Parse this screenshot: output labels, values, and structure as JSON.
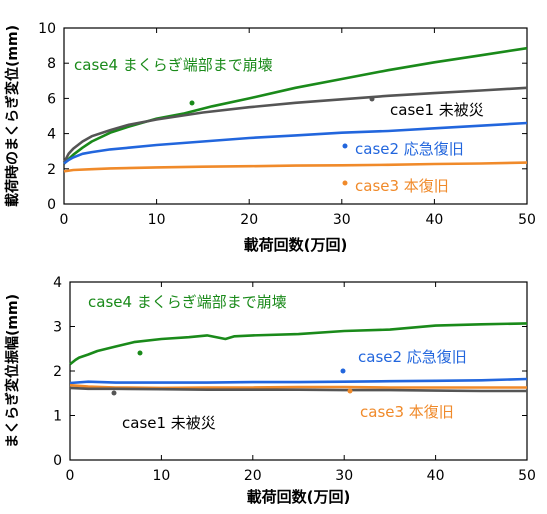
{
  "chart_data": [
    {
      "type": "line",
      "xlabel": "載荷回数(万回)",
      "ylabel": "載荷時のまくらぎ変位(mm)",
      "xlim": [
        0,
        50
      ],
      "ylim": [
        0,
        10
      ],
      "xticks": [
        "0",
        "10",
        "20",
        "30",
        "40",
        "50"
      ],
      "yticks": [
        "0",
        "2",
        "4",
        "6",
        "8",
        "10"
      ],
      "grid": false,
      "series": [
        {
          "name": "case4 まくらぎ端部まで崩壊",
          "color": "#1a8a1a",
          "x": [
            0,
            0.5,
            1,
            2,
            3,
            5,
            7,
            10,
            13,
            16,
            20,
            25,
            30,
            35,
            40,
            45,
            50
          ],
          "y": [
            2.3,
            2.55,
            2.8,
            3.2,
            3.55,
            4.05,
            4.4,
            4.85,
            5.15,
            5.55,
            6.0,
            6.6,
            7.1,
            7.6,
            8.05,
            8.45,
            8.85
          ]
        },
        {
          "name": "case1 未被災",
          "color": "#555555",
          "x": [
            0,
            0.5,
            1,
            2,
            3,
            5,
            7,
            10,
            15,
            20,
            25,
            30,
            35,
            40,
            45,
            50
          ],
          "y": [
            2.35,
            2.85,
            3.15,
            3.55,
            3.85,
            4.2,
            4.5,
            4.8,
            5.2,
            5.5,
            5.75,
            5.95,
            6.15,
            6.3,
            6.45,
            6.6
          ]
        },
        {
          "name": "case2 応急復旧",
          "color": "#2266dd",
          "x": [
            0,
            0.5,
            1,
            2,
            3,
            5,
            7,
            10,
            15,
            20,
            25,
            30,
            35,
            40,
            45,
            50
          ],
          "y": [
            2.3,
            2.5,
            2.65,
            2.85,
            2.95,
            3.1,
            3.2,
            3.35,
            3.55,
            3.75,
            3.9,
            4.05,
            4.15,
            4.3,
            4.45,
            4.6
          ]
        },
        {
          "name": "case3 本復旧",
          "color": "#f08a2a",
          "x": [
            0,
            1,
            3,
            5,
            10,
            15,
            20,
            25,
            30,
            35,
            40,
            45,
            50
          ],
          "y": [
            1.85,
            1.93,
            1.98,
            2.02,
            2.08,
            2.12,
            2.15,
            2.18,
            2.2,
            2.23,
            2.27,
            2.3,
            2.35
          ]
        }
      ],
      "annotations": [
        {
          "series": 0,
          "label": "case4 まくらぎ端部まで崩壊"
        },
        {
          "series": 1,
          "label": "case1 未被災"
        },
        {
          "series": 2,
          "label": "case2 応急復旧"
        },
        {
          "series": 3,
          "label": "case3 本復旧"
        }
      ]
    },
    {
      "type": "line",
      "xlabel": "載荷回数(万回)",
      "ylabel": "まくらぎ変位振幅(mm)",
      "xlim": [
        0,
        50
      ],
      "ylim": [
        0,
        4
      ],
      "xticks": [
        "0",
        "10",
        "20",
        "30",
        "40",
        "50"
      ],
      "yticks": [
        "0",
        "1",
        "2",
        "3",
        "4"
      ],
      "grid": false,
      "series": [
        {
          "name": "case4 まくらぎ端部まで崩壊",
          "color": "#1a8a1a",
          "x": [
            0,
            0.3,
            0.6,
            1,
            2,
            3,
            5,
            7,
            10,
            13,
            15,
            17,
            18,
            20,
            25,
            30,
            35,
            40,
            45,
            50
          ],
          "y": [
            2.15,
            2.2,
            2.25,
            2.3,
            2.37,
            2.45,
            2.55,
            2.65,
            2.72,
            2.76,
            2.8,
            2.72,
            2.78,
            2.8,
            2.83,
            2.9,
            2.93,
            3.02,
            3.05,
            3.07
          ]
        },
        {
          "name": "case2 応急復旧",
          "color": "#2266dd",
          "x": [
            0,
            2,
            5,
            10,
            15,
            20,
            25,
            30,
            35,
            40,
            45,
            50
          ],
          "y": [
            1.73,
            1.76,
            1.74,
            1.74,
            1.74,
            1.75,
            1.75,
            1.76,
            1.77,
            1.78,
            1.79,
            1.82
          ]
        },
        {
          "name": "case3 本復旧",
          "color": "#f08a2a",
          "x": [
            0,
            2,
            5,
            10,
            15,
            20,
            25,
            30,
            35,
            40,
            45,
            50
          ],
          "y": [
            1.68,
            1.65,
            1.63,
            1.62,
            1.63,
            1.63,
            1.64,
            1.64,
            1.63,
            1.63,
            1.63,
            1.63
          ]
        },
        {
          "name": "case1 未被災",
          "color": "#555555",
          "x": [
            0,
            2,
            5,
            10,
            15,
            20,
            25,
            30,
            35,
            40,
            45,
            50
          ],
          "y": [
            1.62,
            1.6,
            1.6,
            1.59,
            1.58,
            1.58,
            1.58,
            1.57,
            1.57,
            1.56,
            1.55,
            1.55
          ]
        }
      ],
      "annotations": [
        {
          "series": 0,
          "label": "case4 まくらぎ端部まで崩壊"
        },
        {
          "series": 1,
          "label": "case2 応急復旧"
        },
        {
          "series": 3,
          "label": "case1 未被災"
        },
        {
          "series": 2,
          "label": "case3 本復旧"
        }
      ]
    }
  ]
}
